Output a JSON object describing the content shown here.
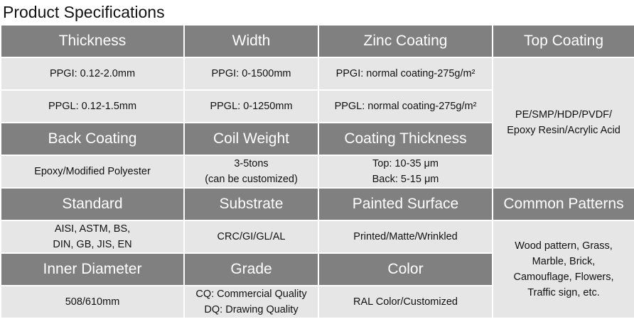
{
  "title": "Product Specifications",
  "table": {
    "rows": [
      [
        "Thickness",
        "Width",
        "Zinc Coating",
        "Top Coating"
      ],
      [
        "PPGI: 0.12-2.0mm",
        "PPGI: 0-1500mm",
        "PPGI: normal coating-275g/m²",
        "PE/SMP/HDP/PVDF/\nEpoxy Resin/Acrylic Acid"
      ],
      [
        "PPGL: 0.12-1.5mm",
        "PPGL: 0-1250mm",
        "PPGL: normal coating-275g/m²"
      ],
      [
        "Back Coating",
        "Coil Weight",
        "Coating Thickness"
      ],
      [
        "Epoxy/Modified Polyester",
        "3-5tons\n(can be customized)",
        "Top: 10-35 μm\nBack: 5-15 μm"
      ],
      [
        "Standard",
        "Substrate",
        "Painted Surface",
        "Common Patterns"
      ],
      [
        "AISI, ASTM, BS,\nDIN, GB, JIS, EN",
        "CRC/GI/GL/AL",
        "Printed/Matte/Wrinkled",
        "Wood pattern, Grass,\nMarble, Brick,\nCamouflage, Flowers,\nTraffic sign, etc."
      ],
      [
        "Inner Diameter",
        "Grade",
        "Color"
      ],
      [
        "508/610mm",
        "CQ: Commercial Quality\nDQ: Drawing Quality",
        "RAL Color/Customized"
      ]
    ]
  }
}
